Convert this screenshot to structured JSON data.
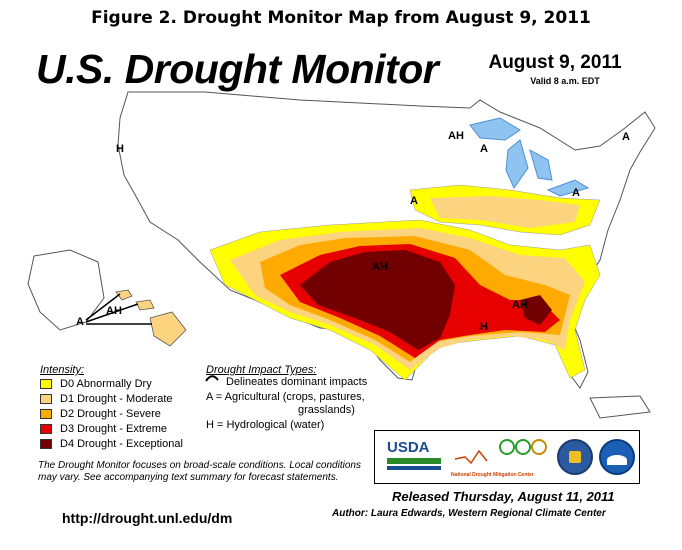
{
  "figure_caption": "Figure 2. Drought Monitor Map from August 9, 2011",
  "title": "U.S. Drought Monitor",
  "date": "August 9, 2011",
  "valid": "Valid 8 a.m. EDT",
  "legend": {
    "heading": "Intensity:",
    "items": [
      {
        "label": "D0 Abnormally Dry",
        "color": "#ffff00"
      },
      {
        "label": "D1 Drought - Moderate",
        "color": "#fcd37f"
      },
      {
        "label": "D2 Drought - Severe",
        "color": "#ffaa00"
      },
      {
        "label": "D3 Drought - Extreme",
        "color": "#e60000"
      },
      {
        "label": "D4 Drought - Exceptional",
        "color": "#730000"
      }
    ]
  },
  "impacts": {
    "heading": "Drought Impact Types:",
    "line1": "Delineates dominant impacts",
    "line2a": "A = Agricultural (crops, pastures,",
    "line2b": "grasslands)",
    "line3": "H = Hydrological (water)"
  },
  "map_labels": {
    "A": "A",
    "H": "H",
    "AH": "AH"
  },
  "disclaimer": "The Drought Monitor focuses on broad-scale conditions. Local conditions may vary. See accompanying text summary for forecast statements.",
  "url": "http://drought.unl.edu/dm",
  "released": "Released Thursday, August 11, 2011",
  "author": "Author: Laura Edwards, Western Regional Climate Center",
  "logos": {
    "usda": "USDA",
    "ndmc": "National Drought Mitigation Center"
  }
}
